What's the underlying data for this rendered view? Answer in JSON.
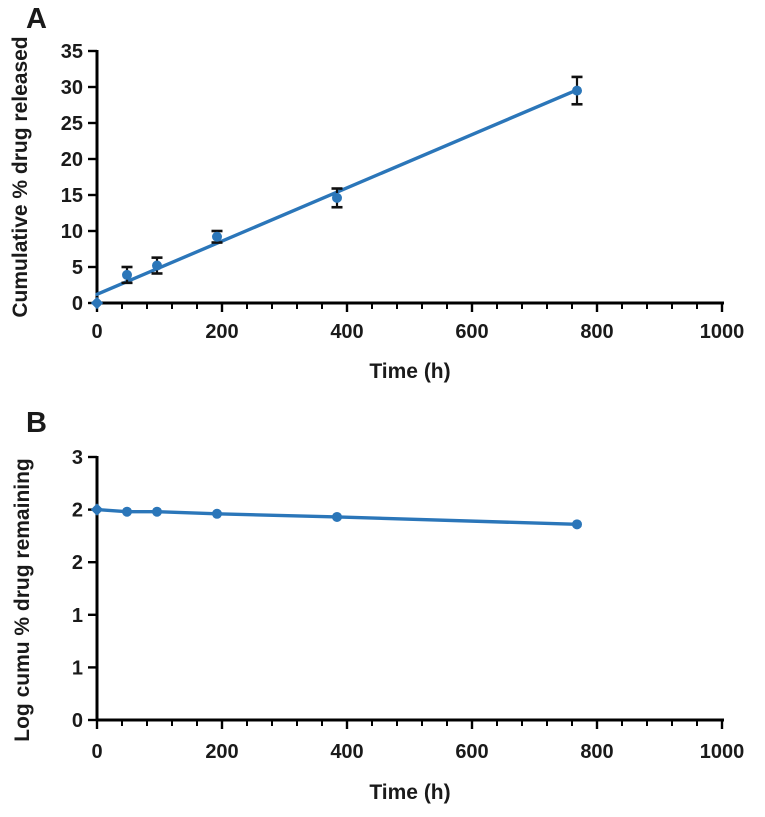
{
  "figure": {
    "background": "#ffffff",
    "panel_a": {
      "label": "A"
    },
    "panel_b": {
      "label": "B"
    }
  },
  "colors": {
    "series": "#2b76b9",
    "axis": "#000000",
    "text": "#1a1a1a",
    "error_bar": "#111111"
  },
  "chart_data": [
    {
      "type": "scatter",
      "panel": "A",
      "x_label": "Time (h)",
      "y_label": "Cumulative % drug released",
      "x": [
        0,
        48,
        96,
        192,
        384,
        768
      ],
      "y": [
        0,
        3.9,
        5.2,
        9.2,
        14.6,
        29.5
      ],
      "y_err": [
        0,
        1.1,
        1.1,
        0.8,
        1.3,
        1.9
      ],
      "trendline": {
        "x": [
          0,
          768
        ],
        "y": [
          1.2,
          29.6
        ]
      },
      "xlim": [
        0,
        1000
      ],
      "ylim": [
        0,
        35
      ],
      "x_tick_values": [
        0,
        200,
        400,
        600,
        800,
        1000
      ],
      "x_tick_labels": [
        "0",
        "200",
        "400",
        "600",
        "800",
        "1000"
      ],
      "x_minor_step": 40,
      "y_tick_values": [
        0,
        5,
        10,
        15,
        20,
        25,
        30,
        35
      ],
      "y_tick_labels": [
        "0",
        "5",
        "10",
        "15",
        "20",
        "25",
        "30",
        "35"
      ],
      "grid": false,
      "legend": "none",
      "marker": "circle",
      "first_marker": "diamond"
    },
    {
      "type": "line",
      "panel": "B",
      "x_label": "Time (h)",
      "y_label": "Log cumu % drug remaining",
      "x": [
        0,
        48,
        96,
        192,
        384,
        768
      ],
      "y": [
        2.0,
        1.98,
        1.98,
        1.96,
        1.93,
        1.86
      ],
      "xlim": [
        0,
        1000
      ],
      "ylim": [
        0,
        2.5
      ],
      "x_tick_values": [
        0,
        200,
        400,
        600,
        800,
        1000
      ],
      "x_tick_labels": [
        "0",
        "200",
        "400",
        "600",
        "800",
        "1000"
      ],
      "x_minor_step": 40,
      "y_tick_values": [
        0,
        0.5,
        1,
        1.5,
        2,
        2.5
      ],
      "y_tick_labels": [
        "0",
        "1",
        "1",
        "2",
        "2",
        "3"
      ],
      "grid": false,
      "legend": "none",
      "marker": "circle",
      "first_marker": "diamond"
    }
  ]
}
